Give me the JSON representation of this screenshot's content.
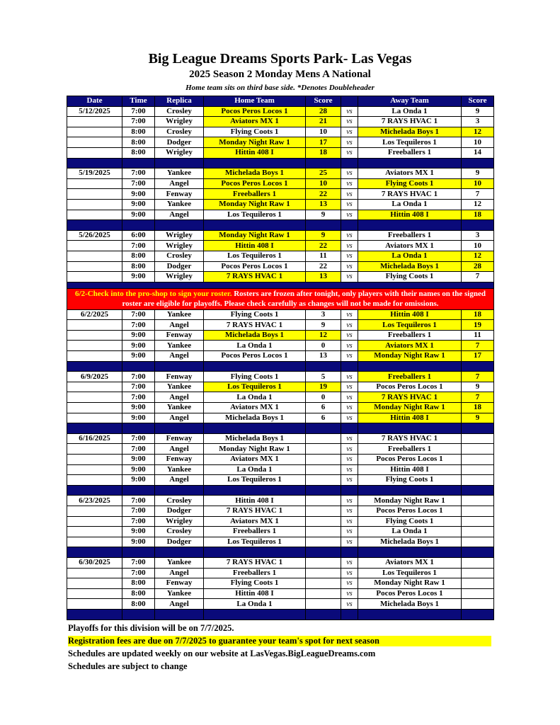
{
  "title": "Big League Dreams Sports Park- Las Vegas",
  "subtitle": "2025 Season 2 Monday Mens A National",
  "note": "Home team sits on third base side.  *Denotes Doubleheader",
  "columns": [
    "Date",
    "Time",
    "Replica",
    "Home Team",
    "Score",
    "",
    "Away Team",
    "Score"
  ],
  "vs_label": "vs",
  "colors": {
    "header": "#0a0a7a",
    "winner": "#ffff00",
    "notice": "#ff0000"
  },
  "notice": {
    "highlight": "6/2-Check into the pro-shop to sign your roster.",
    "text": " Rosters are frozen after tonight, only players with their names on the signed roster are eligible for playoffs. Please check carefully as changes will not be made for omissions.",
    "after_week": 2
  },
  "weeks": [
    {
      "date": "5/12/2025",
      "games": [
        [
          "7:00",
          "Crosley",
          "Pocos Peros Locos 1",
          "28",
          "La Onda 1",
          "9",
          "home"
        ],
        [
          "7:00",
          "Wrigley",
          "Aviators MX 1",
          "21",
          "7 RAYS HVAC 1",
          "3",
          "home"
        ],
        [
          "8:00",
          "Crosley",
          "Flying Coots 1",
          "10",
          "Michelada Boys 1",
          "12",
          "away"
        ],
        [
          "8:00",
          "Dodger",
          "Monday Night Raw 1",
          "17",
          "Los Tequileros 1",
          "10",
          "home"
        ],
        [
          "8:00",
          "Wrigley",
          "Hittin 408 I",
          "18",
          "Freeballers 1",
          "14",
          "home"
        ]
      ]
    },
    {
      "date": "5/19/2025",
      "games": [
        [
          "7:00",
          "Yankee",
          "Michelada Boys 1",
          "25",
          "Aviators MX 1",
          "9",
          "home"
        ],
        [
          "7:00",
          "Angel",
          "Pocos Peros Locos 1",
          "10",
          "Flying Coots 1",
          "10",
          "both"
        ],
        [
          "9:00",
          "Fenway",
          "Freeballers 1",
          "22",
          "7 RAYS HVAC 1",
          "7",
          "home"
        ],
        [
          "9:00",
          "Yankee",
          "Monday Night Raw 1",
          "13",
          "La Onda 1",
          "12",
          "home"
        ],
        [
          "9:00",
          "Angel",
          "Los Tequileros 1",
          "9",
          "Hittin 408 I",
          "18",
          "away"
        ]
      ]
    },
    {
      "date": "5/26/2025",
      "games": [
        [
          "6:00",
          "Wrigley",
          "Monday Night Raw 1",
          "9",
          "Freeballers 1",
          "3",
          "home"
        ],
        [
          "7:00",
          "Wrigley",
          "Hittin 408 I",
          "22",
          "Aviators MX 1",
          "10",
          "home"
        ],
        [
          "8:00",
          "Crosley",
          "Los Tequileros 1",
          "11",
          "La Onda 1",
          "12",
          "away"
        ],
        [
          "8:00",
          "Dodger",
          "Pocos Peros Locos 1",
          "22",
          "Michelada Boys 1",
          "28",
          "away"
        ],
        [
          "9:00",
          "Wrigley",
          "7 RAYS HVAC 1",
          "13",
          "Flying Coots 1",
          "7",
          "home"
        ]
      ]
    },
    {
      "date": "6/2/2025",
      "games": [
        [
          "7:00",
          "Yankee",
          "Flying Coots 1",
          "3",
          "Hittin 408 I",
          "18",
          "away"
        ],
        [
          "7:00",
          "Angel",
          "7 RAYS HVAC 1",
          "9",
          "Los Tequileros 1",
          "19",
          "away"
        ],
        [
          "9:00",
          "Fenway",
          "Michelada Boys 1",
          "12",
          "Freeballers 1",
          "11",
          "home"
        ],
        [
          "9:00",
          "Yankee",
          "La Onda 1",
          "0",
          "Aviators MX 1",
          "7",
          "away"
        ],
        [
          "9:00",
          "Angel",
          "Pocos Peros Locos 1",
          "13",
          "Monday Night Raw 1",
          "17",
          "away"
        ]
      ]
    },
    {
      "date": "6/9/2025",
      "games": [
        [
          "7:00",
          "Fenway",
          "Flying Coots 1",
          "5",
          "Freeballers 1",
          "7",
          "away"
        ],
        [
          "7:00",
          "Yankee",
          "Los Tequileros 1",
          "19",
          "Pocos Peros Locos 1",
          "9",
          "home"
        ],
        [
          "7:00",
          "Angel",
          "La Onda 1",
          "0",
          "7 RAYS HVAC 1",
          "7",
          "away"
        ],
        [
          "9:00",
          "Yankee",
          "Aviators MX 1",
          "6",
          "Monday Night Raw 1",
          "18",
          "away"
        ],
        [
          "9:00",
          "Angel",
          "Michelada Boys 1",
          "6",
          "Hittin 408 I",
          "9",
          "away"
        ]
      ]
    },
    {
      "date": "6/16/2025",
      "games": [
        [
          "7:00",
          "Fenway",
          "Michelada Boys 1",
          "",
          "7 RAYS HVAC 1",
          "",
          ""
        ],
        [
          "7:00",
          "Angel",
          "Monday Night Raw 1",
          "",
          "Freeballers 1",
          "",
          ""
        ],
        [
          "9:00",
          "Fenway",
          "Aviators MX 1",
          "",
          "Pocos Peros Locos 1",
          "",
          ""
        ],
        [
          "9:00",
          "Yankee",
          "La Onda 1",
          "",
          "Hittin 408 I",
          "",
          ""
        ],
        [
          "9:00",
          "Angel",
          "Los Tequileros 1",
          "",
          "Flying Coots 1",
          "",
          ""
        ]
      ]
    },
    {
      "date": "6/23/2025",
      "games": [
        [
          "7:00",
          "Crosley",
          "Hittin 408 I",
          "",
          "Monday Night Raw 1",
          "",
          ""
        ],
        [
          "7:00",
          "Dodger",
          "7 RAYS HVAC 1",
          "",
          "Pocos Peros Locos 1",
          "",
          ""
        ],
        [
          "7:00",
          "Wrigley",
          "Aviators MX 1",
          "",
          "Flying Coots 1",
          "",
          ""
        ],
        [
          "9:00",
          "Crosley",
          "Freeballers 1",
          "",
          "La Onda 1",
          "",
          ""
        ],
        [
          "9:00",
          "Dodger",
          "Los Tequileros 1",
          "",
          "Michelada Boys 1",
          "",
          ""
        ]
      ]
    },
    {
      "date": "6/30/2025",
      "games": [
        [
          "7:00",
          "Yankee",
          "7 RAYS HVAC 1",
          "",
          "Aviators MX 1",
          "",
          ""
        ],
        [
          "7:00",
          "Angel",
          "Freeballers 1",
          "",
          "Los Tequileros 1",
          "",
          ""
        ],
        [
          "8:00",
          "Fenway",
          "Flying Coots 1",
          "",
          "Monday Night Raw 1",
          "",
          ""
        ],
        [
          "8:00",
          "Yankee",
          "Hittin 408 I",
          "",
          "Pocos Peros Locos 1",
          "",
          ""
        ],
        [
          "8:00",
          "Angel",
          "La Onda 1",
          "",
          "Michelada Boys 1",
          "",
          ""
        ]
      ]
    }
  ],
  "footer": [
    "Playoffs for this division will be on 7/7/2025.",
    "Registration fees are due on 7/7/2025 to guarantee your team's spot for next season",
    "Schedules are updated weekly on our website at LasVegas.BigLeagueDreams.com",
    "Schedules are subject to change"
  ]
}
